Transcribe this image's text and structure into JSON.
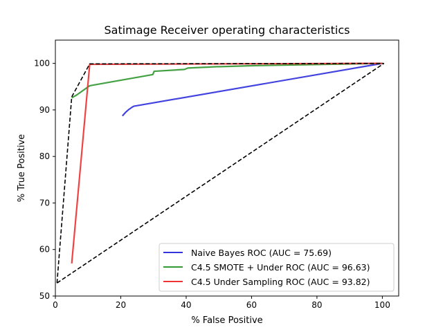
{
  "chart_data": {
    "type": "line",
    "title": "Satimage Receiver operating characteristics",
    "xlabel": "% False Positive",
    "ylabel": "% True Positive",
    "xlim": [
      0,
      105
    ],
    "ylim": [
      50,
      105
    ],
    "xticks": [
      "0",
      "20",
      "40",
      "60",
      "80",
      "100"
    ],
    "yticks": [
      "50",
      "60",
      "70",
      "80",
      "90",
      "100"
    ],
    "grid": false,
    "legend_position": "lower-right",
    "series": [
      {
        "name": "Naive Bayes ROC (AUC = 75.69)",
        "color": "#3333dd",
        "style": "solid",
        "points": [
          [
            20.5,
            88.7
          ],
          [
            21.5,
            89.5
          ],
          [
            22.3,
            90.0
          ],
          [
            23.5,
            90.6
          ],
          [
            24.0,
            90.8
          ],
          [
            100.0,
            100.0
          ]
        ]
      },
      {
        "name": "C4.5 SMOTE + Under ROC (AUC = 96.63)",
        "color": "#339933",
        "style": "solid",
        "points": [
          [
            5.0,
            92.6
          ],
          [
            6.5,
            93.2
          ],
          [
            10.5,
            95.2
          ],
          [
            29.8,
            97.6
          ],
          [
            30.2,
            98.3
          ],
          [
            39.5,
            98.7
          ],
          [
            40.5,
            99.0
          ],
          [
            49.5,
            99.3
          ],
          [
            50.5,
            99.3
          ],
          [
            60.0,
            99.5
          ],
          [
            100.0,
            100.0
          ]
        ]
      },
      {
        "name": "C4.5 Under Sampling ROC (AUC = 93.82)",
        "color": "#ee3333",
        "style": "solid",
        "points": [
          [
            5.0,
            57.0
          ],
          [
            10.5,
            99.8
          ],
          [
            100.0,
            100.0
          ]
        ]
      },
      {
        "color": "#000000",
        "style": "dashed",
        "points": [
          [
            0.5,
            52.8
          ],
          [
            5.0,
            92.8
          ],
          [
            10.5,
            99.9
          ],
          [
            100.5,
            100.0
          ]
        ]
      },
      {
        "color": "#000000",
        "style": "dashed",
        "points": [
          [
            0.5,
            52.8
          ],
          [
            100.5,
            100.0
          ]
        ]
      }
    ]
  }
}
